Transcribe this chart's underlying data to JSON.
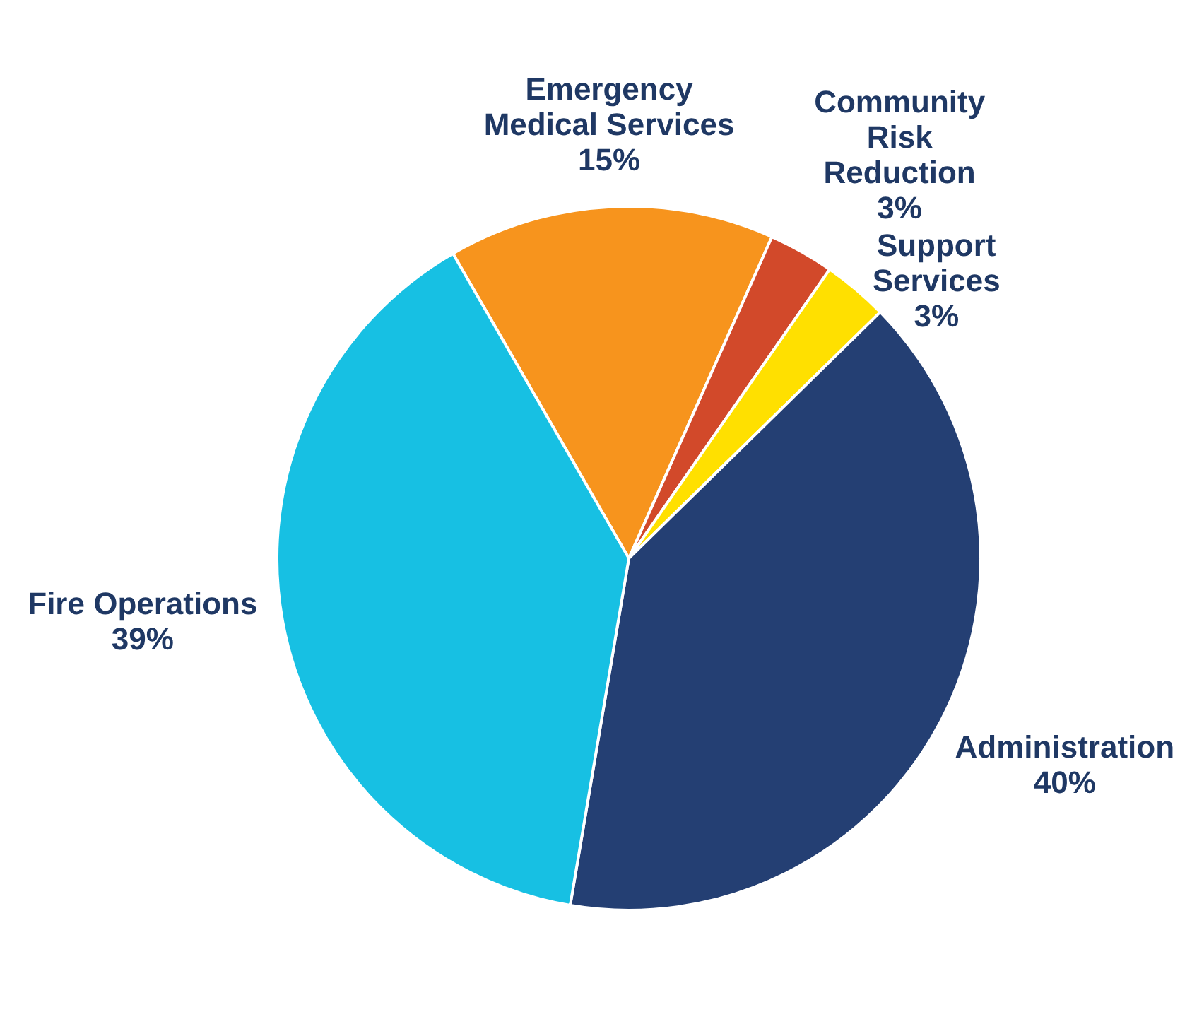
{
  "chart_data": {
    "type": "pie",
    "categories": [
      "Emergency\nMedical Services",
      "Community\nRisk\nReduction",
      "Support\nServices",
      "Administration",
      "Fire Operations"
    ],
    "values": [
      15,
      3,
      3,
      40,
      39
    ],
    "colors": [
      "#f7941d",
      "#d2492a",
      "#ffe000",
      "#243f73",
      "#17c0e3"
    ],
    "value_labels": [
      "15%",
      "3%",
      "3%",
      "40%",
      "39%"
    ],
    "legend": false
  }
}
